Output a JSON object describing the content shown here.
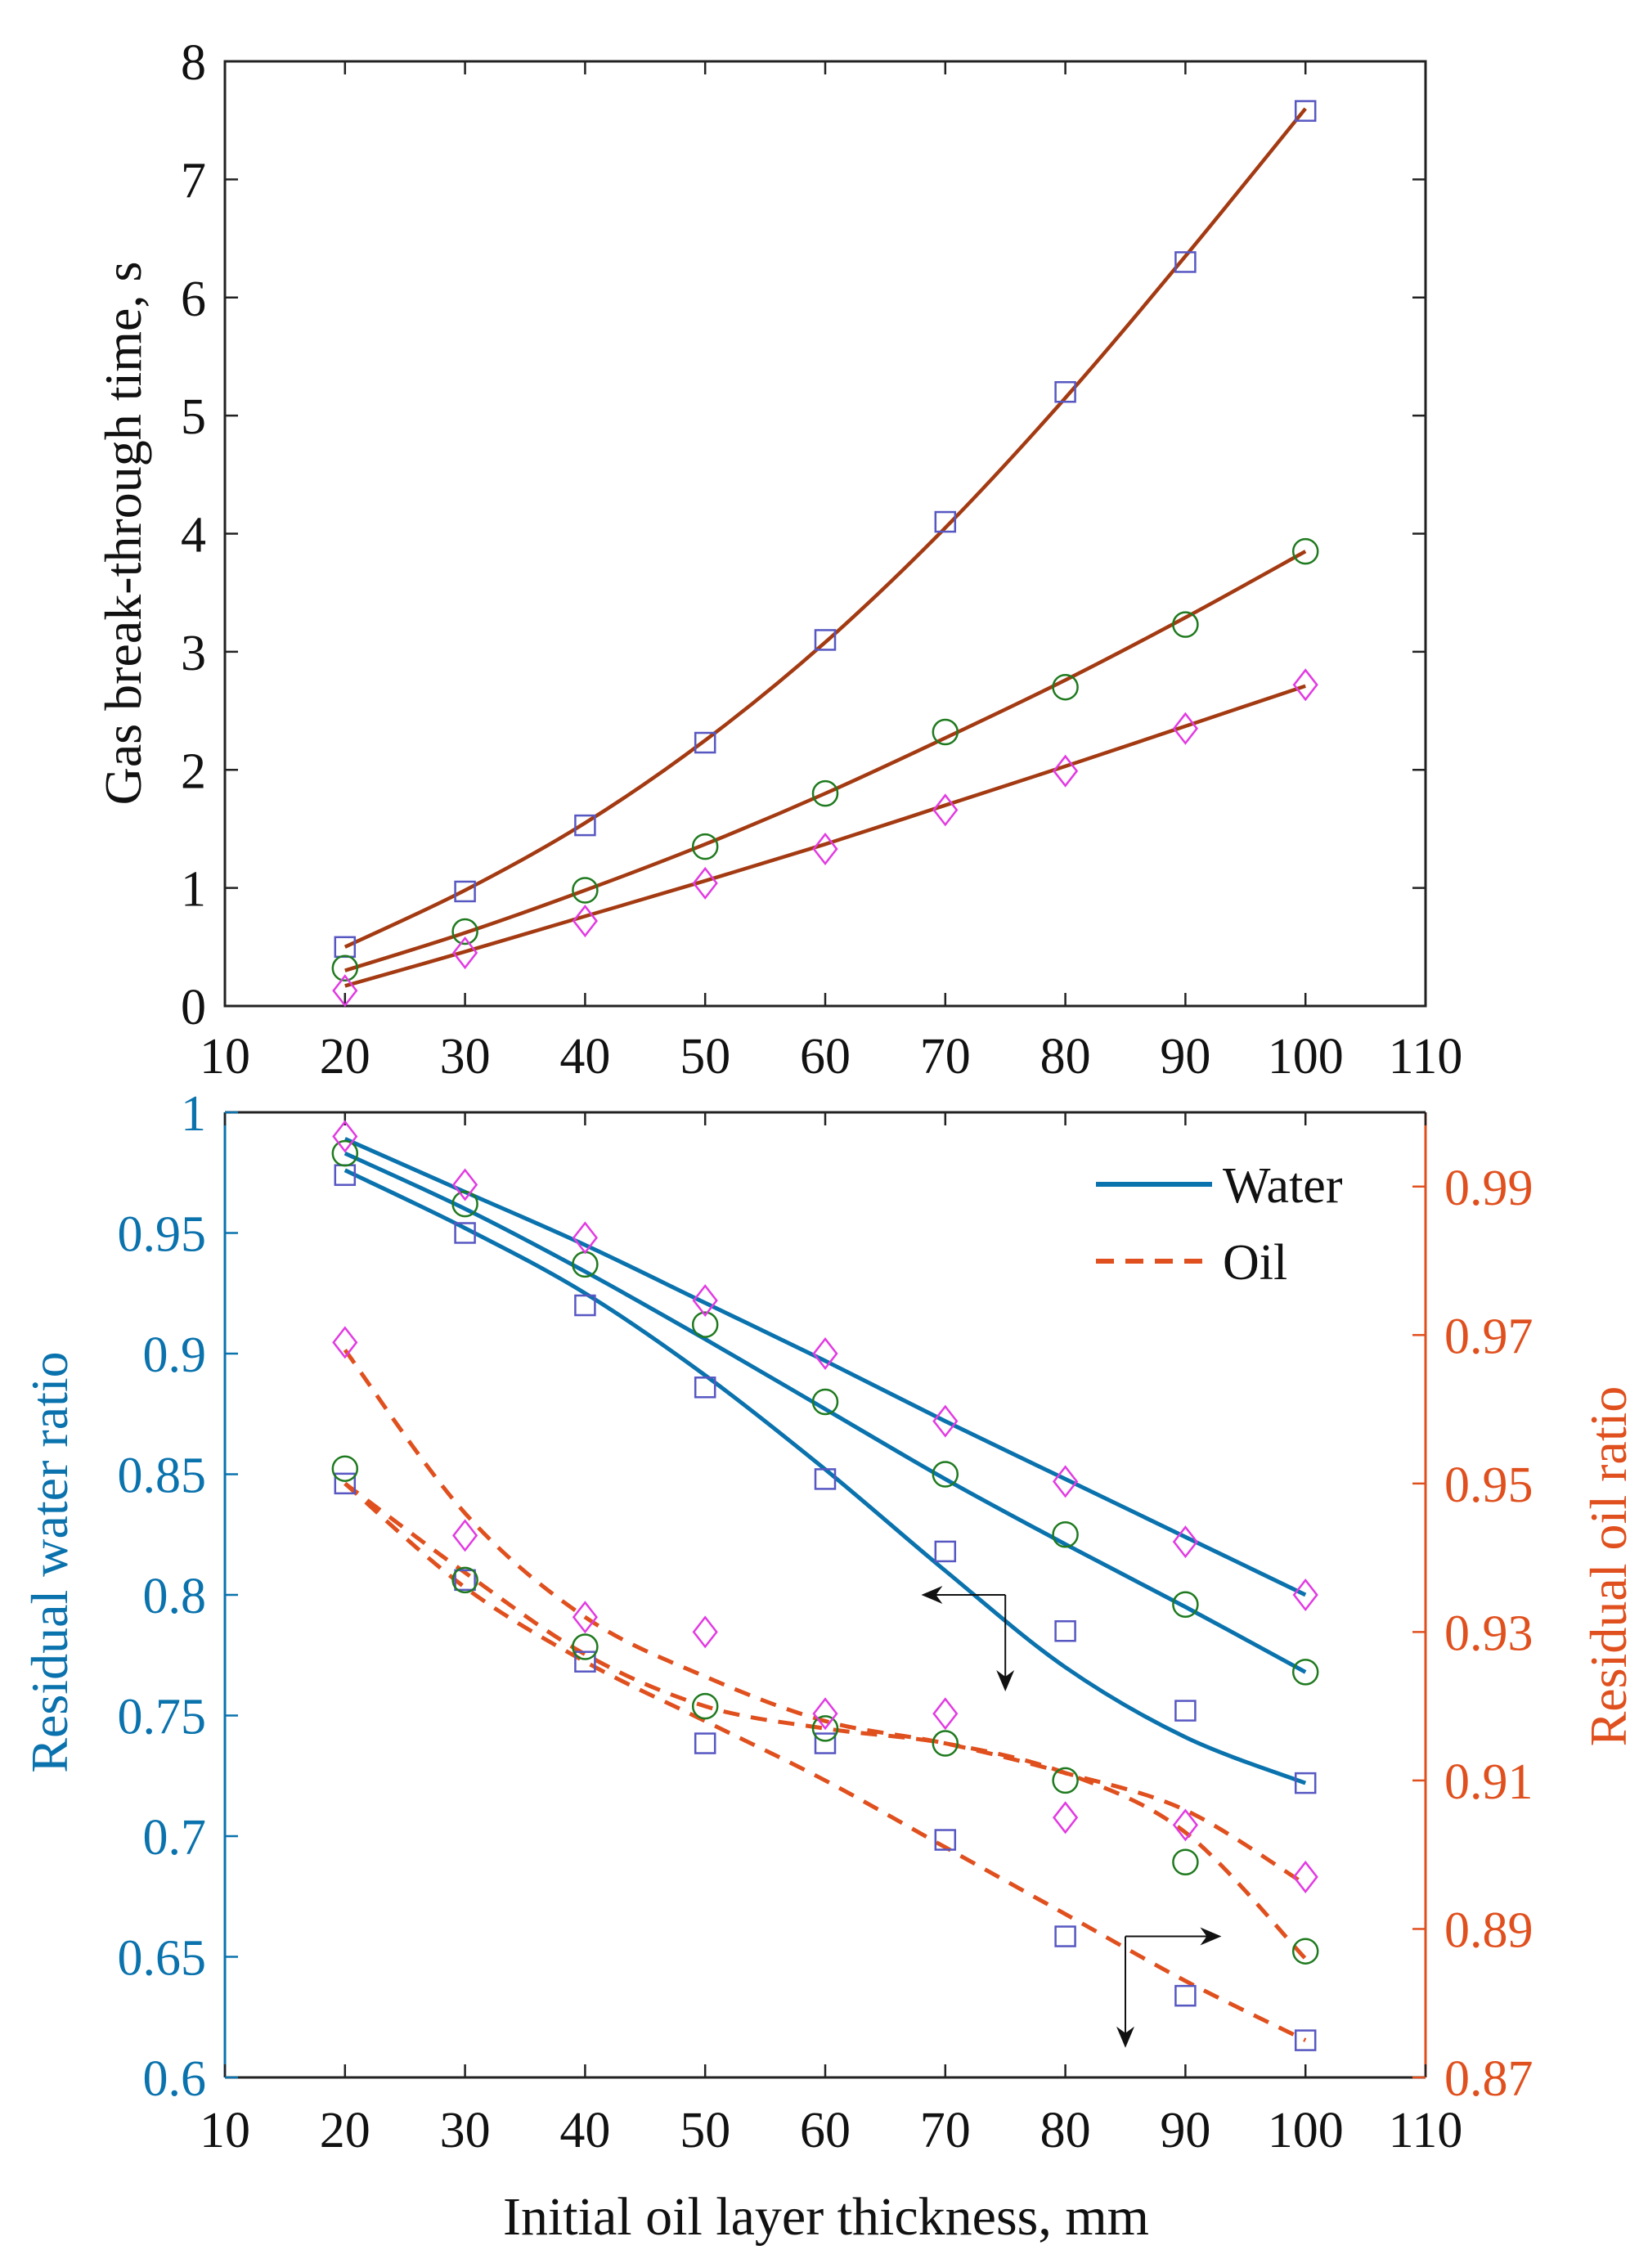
{
  "chart_data": [
    {
      "type": "line",
      "title": "",
      "xlabel": "",
      "ylabel": "Gas break-through time, s",
      "xlim": [
        10,
        110
      ],
      "ylim": [
        0,
        8
      ],
      "xticks": [
        10,
        20,
        30,
        40,
        50,
        60,
        70,
        80,
        90,
        100,
        110
      ],
      "yticks": [
        0,
        1,
        2,
        3,
        4,
        5,
        6,
        7,
        8
      ],
      "grid": false,
      "legend": null,
      "colors": {
        "axis": "#222222",
        "fit_line": "#a33a12",
        "square": "#5757c2",
        "circle": "#1f7a1f",
        "diamond": "#e23ae2"
      },
      "x": [
        20,
        30,
        40,
        50,
        60,
        70,
        80,
        90,
        100
      ],
      "series": [
        {
          "name": "square",
          "marker": "square",
          "values": [
            0.5,
            0.97,
            1.53,
            2.23,
            3.1,
            4.1,
            5.2,
            6.3,
            7.58
          ],
          "fit": [
            0.5,
            0.98,
            1.55,
            2.25,
            3.08,
            4.05,
            5.15,
            6.35,
            7.6
          ]
        },
        {
          "name": "circle",
          "marker": "circle",
          "values": [
            0.32,
            0.63,
            0.98,
            1.35,
            1.8,
            2.32,
            2.7,
            3.23,
            3.85
          ],
          "fit": [
            0.3,
            0.62,
            0.98,
            1.37,
            1.8,
            2.27,
            2.76,
            3.29,
            3.85
          ]
        },
        {
          "name": "diamond",
          "marker": "diamond",
          "values": [
            0.13,
            0.45,
            0.72,
            1.04,
            1.33,
            1.66,
            1.99,
            2.35,
            2.72
          ],
          "fit": [
            0.17,
            0.46,
            0.76,
            1.06,
            1.37,
            1.7,
            2.03,
            2.37,
            2.71
          ]
        }
      ]
    },
    {
      "type": "line",
      "title": "",
      "xlabel": "Initial oil layer thickness, mm",
      "ylabel": "Residual water ratio",
      "y2label": "Residual oil ratio",
      "xlim": [
        10,
        110
      ],
      "ylim": [
        0.6,
        1.0
      ],
      "y2lim": [
        0.87,
        1.0
      ],
      "xticks": [
        10,
        20,
        30,
        40,
        50,
        60,
        70,
        80,
        90,
        100,
        110
      ],
      "yticks": [
        0.6,
        0.65,
        0.7,
        0.75,
        0.8,
        0.85,
        0.9,
        0.95,
        1.0
      ],
      "ytick_labels": [
        "0.6",
        "0.65",
        "0.7",
        "0.75",
        "0.8",
        "0.85",
        "0.9",
        "0.95",
        "1"
      ],
      "y2ticks": [
        0.87,
        0.89,
        0.91,
        0.93,
        0.95,
        0.97,
        0.99
      ],
      "y2tick_labels": [
        "0.87",
        "0.89",
        "0.91",
        "0.93",
        "0.95",
        "0.97",
        "0.99"
      ],
      "grid": false,
      "legend": {
        "position": "top-right",
        "entries": [
          {
            "label": "Water",
            "style": "solid"
          },
          {
            "label": "Oil",
            "style": "dashed"
          }
        ]
      },
      "colors": {
        "water": "#0a72ad",
        "oil": "#e0501e",
        "arrow": "#111111",
        "square": "#5757c2",
        "circle": "#1f7a1f",
        "diamond": "#e23ae2"
      },
      "x": [
        20,
        30,
        40,
        50,
        60,
        70,
        80,
        90,
        100
      ],
      "water_series": [
        {
          "name": "square",
          "marker": "square",
          "values": [
            0.974,
            0.95,
            0.92,
            0.886,
            0.848,
            0.818,
            0.785,
            0.752,
            0.722
          ],
          "fit": [
            0.976,
            0.952,
            0.925,
            0.891,
            0.852,
            0.81,
            0.77,
            0.741,
            0.722
          ]
        },
        {
          "name": "circle",
          "marker": "circle",
          "values": [
            0.983,
            0.962,
            0.937,
            0.912,
            0.88,
            0.85,
            0.825,
            0.796,
            0.768
          ],
          "fit": [
            0.983,
            0.96,
            0.934,
            0.906,
            0.877,
            0.848,
            0.821,
            0.795,
            0.768
          ]
        },
        {
          "name": "diamond",
          "marker": "diamond",
          "values": [
            0.99,
            0.97,
            0.948,
            0.922,
            0.9,
            0.872,
            0.847,
            0.822,
            0.8
          ],
          "fit": [
            0.989,
            0.967,
            0.945,
            0.921,
            0.897,
            0.872,
            0.848,
            0.824,
            0.8
          ]
        }
      ],
      "oil_series": [
        {
          "name": "square",
          "marker": "square",
          "values": [
            0.95,
            0.937,
            0.926,
            0.915,
            0.915,
            0.902,
            0.889,
            0.881,
            0.875
          ],
          "fit": [
            0.95,
            0.936,
            0.926,
            0.918,
            0.91,
            0.901,
            0.892,
            0.883,
            0.875
          ]
        },
        {
          "name": "circle",
          "marker": "circle",
          "values": [
            0.952,
            0.937,
            0.928,
            0.92,
            0.917,
            0.915,
            0.91,
            0.899,
            0.887
          ],
          "fit": [
            0.95,
            0.938,
            0.927,
            0.92,
            0.917,
            0.915,
            0.911,
            0.903,
            0.886
          ]
        },
        {
          "name": "diamond",
          "marker": "diamond",
          "values": [
            0.969,
            0.943,
            0.932,
            0.93,
            0.919,
            0.919,
            0.905,
            0.904,
            0.897
          ],
          "fit": [
            0.968,
            0.946,
            0.932,
            0.924,
            0.918,
            0.915,
            0.911,
            0.906,
            0.896
          ]
        }
      ],
      "annotations": [
        {
          "name": "water-arrow",
          "anchor": [
            75,
            0.8
          ],
          "left_to": 68,
          "down_to": 0.76,
          "axis": "left",
          "meaning": "water curves read on left axis"
        },
        {
          "name": "oil-arrow",
          "anchor": [
            85,
            0.889
          ],
          "right_to": 93,
          "down_to": 0.874,
          "axis": "right",
          "meaning": "oil curves read on right axis"
        }
      ]
    }
  ]
}
